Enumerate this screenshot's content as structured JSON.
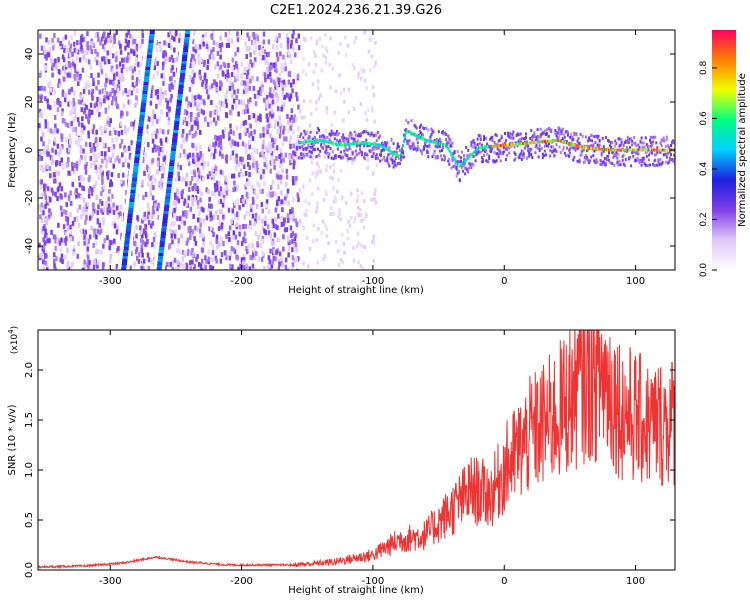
{
  "title": "C2E1.2024.236.21.39.G26",
  "chart_data": [
    {
      "type": "heatmap",
      "title": "C2E1.2024.236.21.39.G26",
      "xlabel": "Height of straight line (km)",
      "ylabel": "Frequency (Hz)",
      "xlim": [
        -355,
        130
      ],
      "ylim": [
        -50,
        50
      ],
      "xticks": [
        -300,
        -200,
        -100,
        0,
        100
      ],
      "yticks": [
        -40,
        -20,
        0,
        20,
        40
      ],
      "colorbar": {
        "label": "Normalized spectral amplitude",
        "range": [
          0.0,
          0.95
        ],
        "ticks": [
          "0.0",
          "0.2",
          "0.4",
          "0.6",
          "0.8"
        ],
        "colormap": [
          "#ffffff",
          "#e0c8f8",
          "#8040e8",
          "#2020e0",
          "#00d0ff",
          "#00ff80",
          "#f0ff00",
          "#ff8000",
          "#ff0060"
        ]
      },
      "features": {
        "noise_region_x": [
          -355,
          -157
        ],
        "occultation_tracks": [
          {
            "x_at_ymin": -290,
            "x_at_ymax": -268
          },
          {
            "x_at_ymin": -263,
            "x_at_ymax": -241
          }
        ],
        "signal_ridge": [
          {
            "x": -157,
            "y": 3
          },
          {
            "x": -140,
            "y": 4
          },
          {
            "x": -125,
            "y": 2
          },
          {
            "x": -110,
            "y": 3
          },
          {
            "x": -95,
            "y": 2
          },
          {
            "x": -80,
            "y": -3
          },
          {
            "x": -75,
            "y": 8
          },
          {
            "x": -60,
            "y": 4
          },
          {
            "x": -45,
            "y": 2
          },
          {
            "x": -35,
            "y": -7
          },
          {
            "x": -20,
            "y": 1
          },
          {
            "x": 0,
            "y": 2
          },
          {
            "x": 20,
            "y": 3
          },
          {
            "x": 40,
            "y": 4
          },
          {
            "x": 60,
            "y": 1
          },
          {
            "x": 80,
            "y": 0
          },
          {
            "x": 100,
            "y": 0
          },
          {
            "x": 130,
            "y": 0
          }
        ]
      }
    },
    {
      "type": "line",
      "xlabel": "Height of straight line (km)",
      "ylabel": "SNR (10 * v/v)",
      "y_scale_label": "(x10",
      "y_scale_exponent": "4",
      "xlim": [
        -355,
        130
      ],
      "ylim": [
        0,
        2.4
      ],
      "xticks": [
        -300,
        -200,
        -100,
        0,
        100
      ],
      "yticks": [
        "0.0",
        "0.5",
        "1.0",
        "1.5",
        "2.0"
      ],
      "series": [
        {
          "color": "#ee3333",
          "envelope": [
            {
              "x": -355,
              "y": 0.03
            },
            {
              "x": -320,
              "y": 0.04
            },
            {
              "x": -290,
              "y": 0.07
            },
            {
              "x": -265,
              "y": 0.13
            },
            {
              "x": -240,
              "y": 0.08
            },
            {
              "x": -210,
              "y": 0.05
            },
            {
              "x": -160,
              "y": 0.05
            },
            {
              "x": -130,
              "y": 0.08
            },
            {
              "x": -100,
              "y": 0.15
            },
            {
              "x": -80,
              "y": 0.3
            },
            {
              "x": -60,
              "y": 0.35
            },
            {
              "x": -40,
              "y": 0.6
            },
            {
              "x": -25,
              "y": 0.8
            },
            {
              "x": -10,
              "y": 0.75
            },
            {
              "x": 0,
              "y": 1.0
            },
            {
              "x": 20,
              "y": 1.35
            },
            {
              "x": 40,
              "y": 1.55
            },
            {
              "x": 60,
              "y": 1.9
            },
            {
              "x": 75,
              "y": 1.95
            },
            {
              "x": 90,
              "y": 1.6
            },
            {
              "x": 110,
              "y": 1.45
            },
            {
              "x": 130,
              "y": 1.5
            }
          ]
        }
      ]
    }
  ]
}
